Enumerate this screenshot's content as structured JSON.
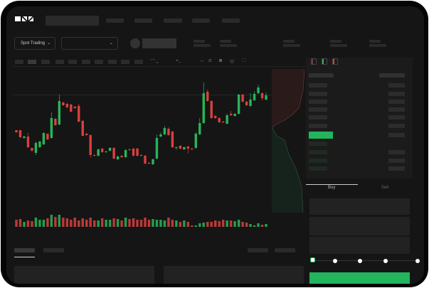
{
  "header": {
    "logo": "OKX"
  },
  "toolbar": {
    "market_select": "Spot Trading",
    "pair_select": ""
  },
  "trade": {
    "tabs": [
      {
        "label": "Buy",
        "active": true
      },
      {
        "label": "Sell",
        "active": false
      }
    ],
    "leverage_slider": 0,
    "submit_color": "#22b55d"
  },
  "colors": {
    "up": "#27b55a",
    "down": "#d9403f",
    "background": "#151515"
  },
  "candles": [
    [
      118,
      115,
      118,
      114
    ],
    [
      118,
      108,
      118,
      107
    ],
    [
      107,
      109,
      110,
      106
    ],
    [
      109,
      94,
      114,
      93
    ],
    [
      93,
      89,
      93,
      88
    ],
    [
      86,
      100,
      102,
      83
    ],
    [
      94,
      102,
      103,
      93
    ],
    [
      98,
      114,
      115,
      97
    ],
    [
      113,
      105,
      113,
      104
    ],
    [
      107,
      135,
      143,
      106
    ],
    [
      134,
      125,
      135,
      124
    ],
    [
      126,
      159,
      168,
      125
    ],
    [
      157,
      153,
      158,
      152
    ],
    [
      155,
      150,
      156,
      149
    ],
    [
      154,
      144,
      155,
      143
    ],
    [
      151,
      149,
      152,
      148
    ],
    [
      152,
      130,
      155,
      129
    ],
    [
      131,
      110,
      132,
      109
    ],
    [
      113,
      111,
      114,
      110
    ],
    [
      111,
      83,
      112,
      79
    ],
    [
      83,
      82,
      84,
      81
    ],
    [
      82,
      91,
      92,
      81
    ],
    [
      92,
      87,
      93,
      86
    ],
    [
      87,
      88,
      89,
      86
    ],
    [
      89,
      93,
      94,
      88
    ],
    [
      93,
      78,
      94,
      77
    ],
    [
      77,
      81,
      82,
      76
    ],
    [
      82,
      80,
      83,
      79
    ],
    [
      80,
      90,
      91,
      79
    ],
    [
      91,
      90,
      92,
      89
    ],
    [
      92,
      82,
      93,
      81
    ],
    [
      92,
      82,
      93,
      81
    ],
    [
      83,
      82,
      84,
      81
    ],
    [
      82,
      71,
      83,
      70
    ],
    [
      72,
      71,
      73,
      70
    ],
    [
      70,
      77,
      78,
      69
    ],
    [
      78,
      107,
      112,
      77
    ],
    [
      109,
      112,
      115,
      108
    ],
    [
      112,
      121,
      124,
      111
    ],
    [
      120,
      111,
      122,
      110
    ],
    [
      116,
      94,
      117,
      93
    ],
    [
      93,
      94,
      95,
      90
    ],
    [
      96,
      92,
      97,
      91
    ],
    [
      91,
      94,
      95,
      90
    ],
    [
      95,
      92,
      96,
      85
    ],
    [
      92,
      91,
      93,
      90
    ],
    [
      93,
      113,
      115,
      92
    ],
    [
      112,
      128,
      135,
      111
    ],
    [
      128,
      170,
      185,
      127
    ],
    [
      172,
      159,
      175,
      158
    ],
    [
      159,
      135,
      160,
      134
    ],
    [
      138,
      135,
      139,
      134
    ],
    [
      135,
      129,
      136,
      128
    ],
    [
      130,
      129,
      131,
      128
    ],
    [
      127,
      139,
      141,
      126
    ],
    [
      141,
      139,
      145,
      138
    ],
    [
      138,
      141,
      142,
      137
    ],
    [
      141,
      168,
      169,
      140
    ],
    [
      168,
      158,
      169,
      157
    ],
    [
      158,
      153,
      159,
      152
    ],
    [
      152,
      161,
      170,
      151
    ],
    [
      160,
      169,
      173,
      159
    ],
    [
      170,
      178,
      182,
      169
    ],
    [
      170,
      163,
      171,
      160
    ],
    [
      161,
      167,
      171,
      160
    ]
  ],
  "volumes": [
    10,
    11,
    7,
    9,
    8,
    13,
    10,
    10,
    12,
    17,
    14,
    17,
    13,
    12,
    10,
    13,
    9,
    12,
    10,
    13,
    9,
    9,
    12,
    10,
    10,
    12,
    11,
    9,
    13,
    11,
    12,
    10,
    10,
    13,
    10,
    11,
    10,
    10,
    9,
    13,
    10,
    9,
    7,
    9,
    7,
    2,
    2,
    5,
    6,
    7,
    7,
    9,
    8,
    10,
    9,
    9,
    8,
    10,
    7,
    6,
    4,
    2,
    5,
    3,
    4
  ]
}
